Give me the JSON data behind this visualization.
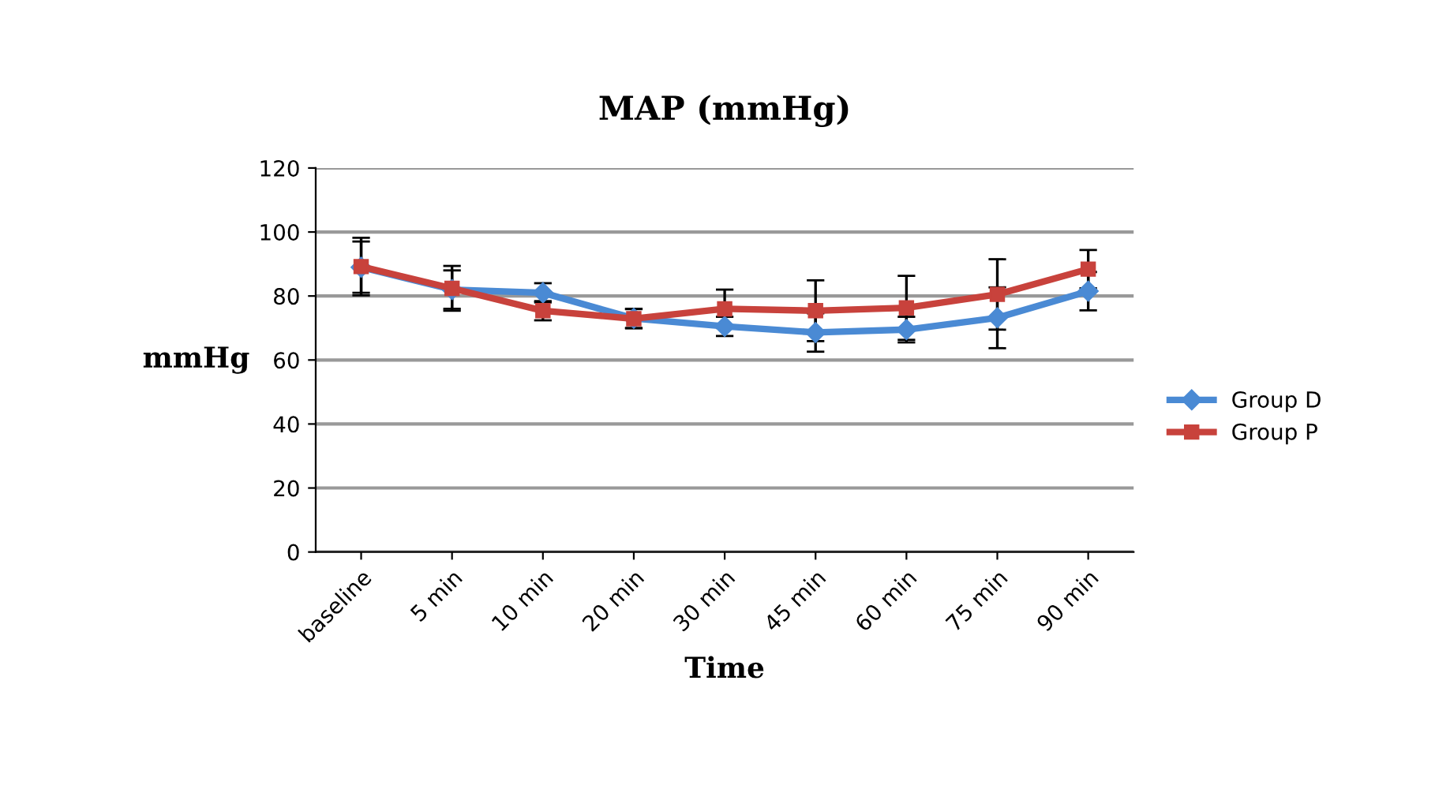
{
  "chart_data": {
    "type": "line",
    "title": "MAP (mmHg)",
    "xlabel": "Time",
    "ylabel": "mmHg",
    "categories": [
      "baseline",
      "5 min",
      "10 min",
      "20 min",
      "30 min",
      "45 min",
      "60 min",
      "75 min",
      "90 min"
    ],
    "series": [
      {
        "name": "Group D",
        "color": "#4a8ad4",
        "marker": "diamond",
        "values": [
          89,
          82,
          81,
          73,
          70.5,
          68.6,
          69.5,
          73.2,
          81.5
        ],
        "errors": [
          8,
          6,
          3,
          3,
          3,
          6,
          4,
          9.5,
          6
        ]
      },
      {
        "name": "Group P",
        "color": "#c8423c",
        "marker": "square",
        "values": [
          89.2,
          82.4,
          75.4,
          72.9,
          76,
          75.4,
          76.3,
          80.5,
          88.4
        ],
        "errors": [
          9,
          7,
          3,
          3,
          6,
          9.5,
          10,
          11,
          6
        ]
      }
    ],
    "ylim": [
      0,
      120
    ],
    "yticks": [
      0,
      20,
      40,
      60,
      80,
      100,
      120
    ],
    "grid": "y",
    "legend": "right"
  }
}
